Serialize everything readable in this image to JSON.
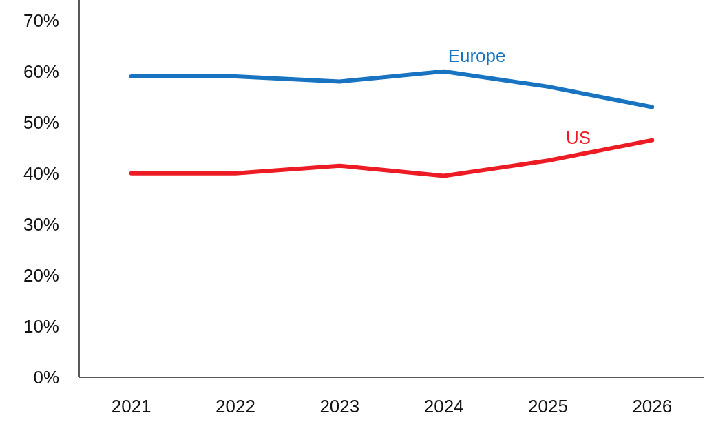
{
  "chart_data": {
    "type": "line",
    "categories": [
      "2021",
      "2022",
      "2023",
      "2024",
      "2025",
      "2026"
    ],
    "series": [
      {
        "name": "Europe",
        "color": "#1874c1",
        "values": [
          59,
          59,
          58,
          60,
          57,
          53
        ]
      },
      {
        "name": "US",
        "color": "#ed1c24",
        "values": [
          40,
          40,
          41.5,
          39.5,
          42.5,
          46.5
        ]
      }
    ],
    "ylim": [
      0,
      74
    ],
    "yticks": [
      {
        "value": 0,
        "label": "0%"
      },
      {
        "value": 10,
        "label": "10%"
      },
      {
        "value": 20,
        "label": "20%"
      },
      {
        "value": 30,
        "label": "30%"
      },
      {
        "value": 40,
        "label": "40%"
      },
      {
        "value": 50,
        "label": "50%"
      },
      {
        "value": 60,
        "label": "60%"
      },
      {
        "value": 70,
        "label": "70%"
      }
    ],
    "grid": false,
    "legend": false,
    "marker": "none",
    "line_style": "solid"
  }
}
